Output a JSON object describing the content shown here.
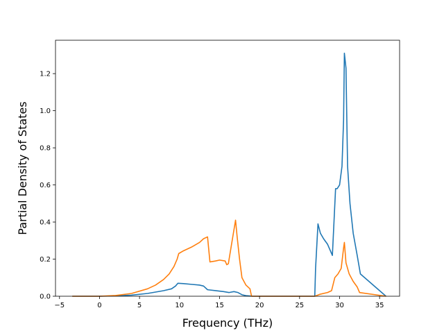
{
  "chart_data": {
    "type": "line",
    "title": "",
    "xlabel": "Frequency (THz)",
    "ylabel": "Partial Density of States",
    "xlim": [
      -5.5,
      37.5
    ],
    "ylim": [
      0.0,
      1.38
    ],
    "xticks": [
      -5,
      0,
      5,
      10,
      15,
      20,
      25,
      30,
      35
    ],
    "xtick_labels": [
      "−5",
      "0",
      "5",
      "10",
      "15",
      "20",
      "25",
      "30",
      "35"
    ],
    "yticks": [
      0.0,
      0.2,
      0.4,
      0.6,
      0.8,
      1.0,
      1.2
    ],
    "ytick_labels": [
      "0.0",
      "0.2",
      "0.4",
      "0.6",
      "0.8",
      "1.0",
      "1.2"
    ],
    "grid": false,
    "legend": "none",
    "series": [
      {
        "color": "#1f77b4",
        "x": [
          -3.4,
          0,
          2,
          4,
          6,
          8,
          9,
          9.5,
          9.8,
          10.5,
          11.5,
          12.5,
          13.0,
          13.5,
          14.5,
          15.5,
          16.2,
          16.8,
          17.3,
          17.8,
          18.3,
          18.8,
          19.2,
          26.9,
          27.0,
          27.3,
          27.6,
          28.0,
          28.5,
          28.9,
          29.1,
          29.3,
          29.5,
          29.7,
          30.0,
          30.3,
          30.5,
          30.6,
          30.8,
          31.0,
          31.3,
          31.7,
          32.2,
          32.6,
          35.8
        ],
        "y": [
          0,
          0,
          0.002,
          0.006,
          0.015,
          0.03,
          0.04,
          0.055,
          0.07,
          0.068,
          0.064,
          0.06,
          0.055,
          0.035,
          0.03,
          0.025,
          0.02,
          0.025,
          0.02,
          0.008,
          0.003,
          0.001,
          0,
          0,
          0.15,
          0.39,
          0.34,
          0.31,
          0.28,
          0.24,
          0.22,
          0.4,
          0.58,
          0.58,
          0.6,
          0.7,
          0.95,
          1.31,
          1.23,
          0.7,
          0.5,
          0.34,
          0.22,
          0.12,
          0
        ]
      },
      {
        "color": "#ff7f0e",
        "x": [
          -3.4,
          0,
          2,
          4,
          6,
          7,
          8,
          8.7,
          9.3,
          9.7,
          9.9,
          10.5,
          11.5,
          12.5,
          13.0,
          13.5,
          13.8,
          14.5,
          15.0,
          15.7,
          15.9,
          16.1,
          16.5,
          17.0,
          17.2,
          17.5,
          17.8,
          18.3,
          18.8,
          19.0,
          26.9,
          27.5,
          28.5,
          29.0,
          29.4,
          29.8,
          30.2,
          30.5,
          30.6,
          30.8,
          31.2,
          31.7,
          32.2,
          32.5,
          35.8
        ],
        "y": [
          0,
          0,
          0.004,
          0.015,
          0.04,
          0.06,
          0.09,
          0.12,
          0.16,
          0.2,
          0.23,
          0.245,
          0.265,
          0.29,
          0.31,
          0.32,
          0.185,
          0.19,
          0.195,
          0.19,
          0.17,
          0.175,
          0.28,
          0.41,
          0.32,
          0.2,
          0.1,
          0.06,
          0.04,
          0,
          0,
          0.01,
          0.02,
          0.03,
          0.1,
          0.12,
          0.15,
          0.26,
          0.29,
          0.18,
          0.12,
          0.08,
          0.05,
          0.02,
          0
        ]
      }
    ]
  }
}
